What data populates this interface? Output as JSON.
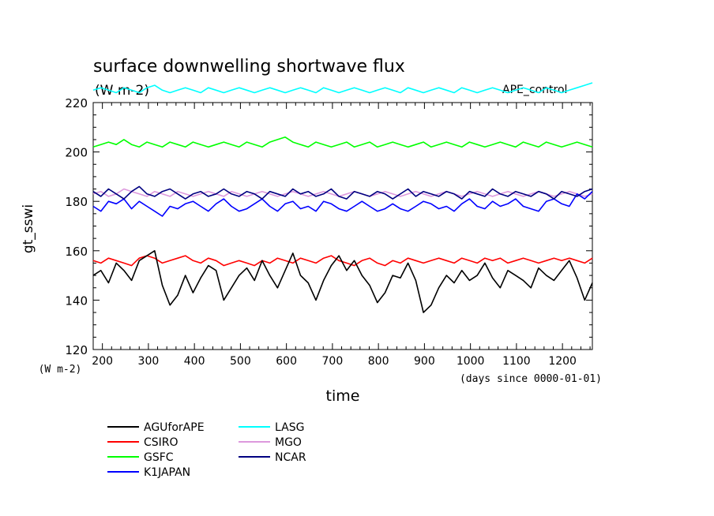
{
  "chart_data": {
    "type": "line",
    "title": "surface downwelling shortwave flux",
    "units": "(W m-2)",
    "experiment": "APE_control",
    "xlabel": "time",
    "x_units": "(days since 0000-01-01)",
    "ylabel": "gt_sswi",
    "y_units": "(W m-2)",
    "xlim": [
      180,
      1265
    ],
    "ylim": [
      120,
      220
    ],
    "x_ticks": [
      200,
      300,
      400,
      500,
      600,
      700,
      800,
      900,
      1000,
      1100,
      1200
    ],
    "y_ticks": [
      120,
      140,
      160,
      180,
      200,
      220
    ],
    "series": [
      {
        "name": "AGUforAPE",
        "color": "#000000",
        "values": [
          150,
          152,
          147,
          155,
          152,
          148,
          156,
          158,
          160,
          146,
          138,
          142,
          150,
          143,
          149,
          154,
          152,
          140,
          145,
          150,
          153,
          148,
          156,
          150,
          145,
          152,
          159,
          150,
          147,
          140,
          148,
          154,
          158,
          152,
          156,
          150,
          146,
          139,
          143,
          150,
          149,
          155,
          148,
          135,
          138,
          145,
          150,
          147,
          152,
          148,
          150,
          155,
          149,
          145,
          152,
          150,
          148,
          145,
          153,
          150,
          148,
          152,
          156,
          149,
          140,
          147
        ]
      },
      {
        "name": "CSIRO",
        "color": "#ff0000",
        "values": [
          156,
          155,
          157,
          156,
          155,
          154,
          157,
          158,
          157,
          155,
          156,
          157,
          158,
          156,
          155,
          157,
          156,
          154,
          155,
          156,
          155,
          154,
          156,
          155,
          157,
          156,
          155,
          157,
          156,
          155,
          157,
          158,
          156,
          155,
          154,
          156,
          157,
          155,
          154,
          156,
          155,
          157,
          156,
          155,
          156,
          157,
          156,
          155,
          157,
          156,
          155,
          157,
          156,
          157,
          155,
          156,
          157,
          156,
          155,
          156,
          157,
          156,
          157,
          156,
          155,
          157
        ]
      },
      {
        "name": "GSFC",
        "color": "#00ff00",
        "values": [
          202,
          203,
          204,
          203,
          205,
          203,
          202,
          204,
          203,
          202,
          204,
          203,
          202,
          204,
          203,
          202,
          203,
          204,
          203,
          202,
          204,
          203,
          202,
          204,
          205,
          206,
          204,
          203,
          202,
          204,
          203,
          202,
          203,
          204,
          202,
          203,
          204,
          202,
          203,
          204,
          203,
          202,
          203,
          204,
          202,
          203,
          204,
          203,
          202,
          204,
          203,
          202,
          203,
          204,
          203,
          202,
          204,
          203,
          202,
          204,
          203,
          202,
          203,
          204,
          203,
          202
        ]
      },
      {
        "name": "K1JAPAN",
        "color": "#0000ff",
        "values": [
          178,
          176,
          180,
          179,
          181,
          177,
          180,
          178,
          176,
          174,
          178,
          177,
          179,
          180,
          178,
          176,
          179,
          181,
          178,
          176,
          177,
          179,
          181,
          178,
          176,
          179,
          180,
          177,
          178,
          176,
          180,
          179,
          177,
          176,
          178,
          180,
          178,
          176,
          177,
          179,
          177,
          176,
          178,
          180,
          179,
          177,
          178,
          176,
          179,
          181,
          178,
          177,
          180,
          178,
          179,
          181,
          178,
          177,
          176,
          180,
          181,
          179,
          178,
          183,
          181,
          184
        ]
      },
      {
        "name": "LASG",
        "color": "#00ffff",
        "values": [
          225,
          226,
          225,
          224,
          226,
          225,
          224,
          226,
          227,
          225,
          224,
          225,
          226,
          225,
          224,
          226,
          225,
          224,
          225,
          226,
          225,
          224,
          225,
          226,
          225,
          224,
          225,
          226,
          225,
          224,
          226,
          225,
          224,
          225,
          226,
          225,
          224,
          225,
          226,
          225,
          224,
          226,
          225,
          224,
          225,
          226,
          225,
          224,
          226,
          225,
          224,
          225,
          226,
          225,
          224,
          225,
          226,
          225,
          224,
          226,
          225,
          224,
          225,
          226,
          227,
          228
        ]
      },
      {
        "name": "MGO",
        "color": "#dd99dd",
        "values": [
          183,
          184,
          182,
          183,
          185,
          184,
          183,
          182,
          184,
          183,
          182,
          184,
          183,
          182,
          183,
          184,
          183,
          182,
          184,
          183,
          182,
          183,
          184,
          183,
          182,
          183,
          184,
          183,
          182,
          183,
          184,
          183,
          182,
          183,
          184,
          183,
          182,
          183,
          184,
          183,
          182,
          183,
          184,
          183,
          182,
          183,
          184,
          183,
          182,
          183,
          184,
          183,
          182,
          183,
          184,
          183,
          182,
          183,
          184,
          183,
          182,
          183,
          184,
          183,
          182,
          183
        ]
      },
      {
        "name": "NCAR",
        "color": "#000080",
        "values": [
          184,
          182,
          185,
          183,
          181,
          184,
          186,
          183,
          182,
          184,
          185,
          183,
          181,
          183,
          184,
          182,
          183,
          185,
          183,
          182,
          184,
          183,
          181,
          184,
          183,
          182,
          185,
          183,
          184,
          182,
          183,
          185,
          182,
          181,
          184,
          183,
          182,
          184,
          183,
          181,
          183,
          185,
          182,
          184,
          183,
          182,
          184,
          183,
          181,
          184,
          183,
          182,
          185,
          183,
          182,
          184,
          183,
          182,
          184,
          183,
          181,
          184,
          183,
          182,
          184,
          185
        ]
      }
    ]
  }
}
